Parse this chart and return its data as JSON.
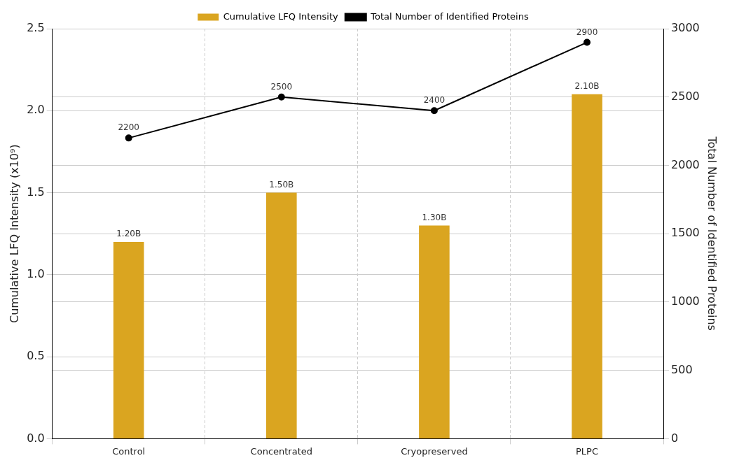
{
  "chart_data": {
    "type": "bar",
    "categories": [
      "Control",
      "Concentrated",
      "Cryopreserved",
      "PLPC"
    ],
    "ylabel": "Cumulative LFQ Intensity (x10⁹)",
    "y2label": "Total Number of Identified Proteins",
    "ylim": [
      0,
      2.5
    ],
    "yticks": [
      {
        "value": 0,
        "label": "0.0"
      },
      0.5,
      {
        "value": 1,
        "label": "1.0"
      },
      1.5,
      {
        "value": 2,
        "label": "2.0"
      },
      2.5
    ],
    "y2lim": [
      0,
      3000
    ],
    "y2ticks": [
      0,
      500,
      1000,
      1500,
      2000,
      2500,
      3000
    ],
    "grid": true,
    "legend": "top",
    "series": [
      {
        "name": "Cumulative LFQ Intensity",
        "color": "#daa520",
        "values": [
          1.2,
          1.5,
          1.3,
          2.1
        ],
        "value_labels": [
          "1.20B",
          "1.50B",
          "1.30B",
          "2.10B"
        ]
      },
      {
        "name": "Total Number of Identified Proteins",
        "type": "line",
        "axis": "y2",
        "color": "#000000",
        "marker": "circle",
        "values": [
          2200,
          2500,
          2400,
          2900
        ],
        "value_labels": [
          "2200",
          "2500",
          "2400",
          "2900"
        ]
      }
    ]
  }
}
